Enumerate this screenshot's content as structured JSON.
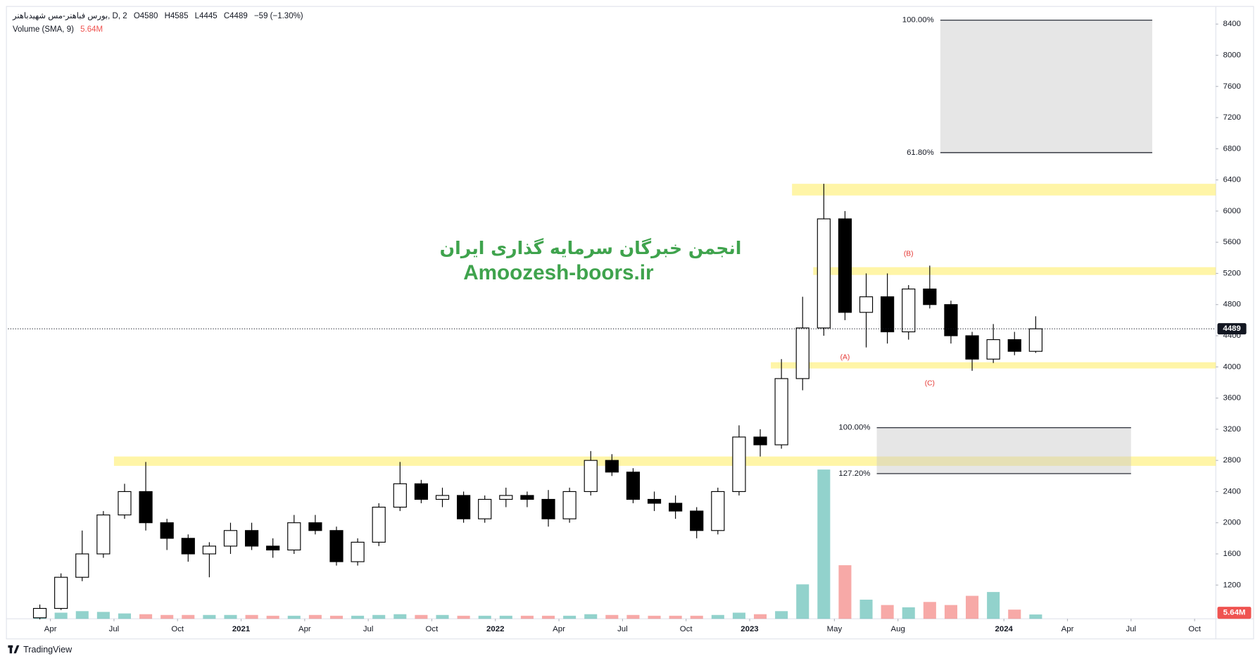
{
  "chart_data": {
    "type": "candlestick",
    "symbol": "بورس فباهنر-مس شهیدباهنر, D, 2",
    "ohlc_legend": [
      "O4580",
      "H4585",
      "L4445",
      "C4489",
      "−59 (−1.30%)"
    ],
    "xlim": [
      "2020-02",
      "2024-11"
    ],
    "ylim": [
      767,
      8606
    ],
    "yticks": [
      1200,
      1600,
      2000,
      2400,
      2800,
      3200,
      3600,
      4000,
      4400,
      4800,
      5200,
      5600,
      6000,
      6400,
      6800,
      7200,
      7600,
      8000,
      8400
    ],
    "xticks": [
      {
        "value": "2020-04",
        "label": "Apr"
      },
      {
        "value": "2020-07",
        "label": "Jul"
      },
      {
        "value": "2020-10",
        "label": "Oct"
      },
      {
        "value": "2021-01",
        "label": "2021"
      },
      {
        "value": "2021-04",
        "label": "Apr"
      },
      {
        "value": "2021-07",
        "label": "Jul"
      },
      {
        "value": "2021-10",
        "label": "Oct"
      },
      {
        "value": "2022-01",
        "label": "2022"
      },
      {
        "value": "2022-04",
        "label": "Apr"
      },
      {
        "value": "2022-07",
        "label": "Jul"
      },
      {
        "value": "2022-10",
        "label": "Oct"
      },
      {
        "value": "2023-01",
        "label": "2023"
      },
      {
        "value": "2023-05",
        "label": "May"
      },
      {
        "value": "2023-08",
        "label": "Aug"
      },
      {
        "value": "2024-01",
        "label": "2024"
      },
      {
        "value": "2024-04",
        "label": "Apr"
      },
      {
        "value": "2024-07",
        "label": "Jul"
      },
      {
        "value": "2024-10",
        "label": "Oct"
      }
    ],
    "up_color": "#ffffff",
    "down_color": "#000000",
    "wick_color": "#000000",
    "candles": {
      "x": [
        "2020-03",
        "2020-04",
        "2020-05",
        "2020-06",
        "2020-07",
        "2020-08",
        "2020-09",
        "2020-10",
        "2020-11",
        "2020-12",
        "2021-01",
        "2021-02",
        "2021-03",
        "2021-04",
        "2021-05",
        "2021-06",
        "2021-07",
        "2021-08",
        "2021-09",
        "2021-10",
        "2021-11",
        "2021-12",
        "2022-01",
        "2022-02",
        "2022-03",
        "2022-04",
        "2022-05",
        "2022-06",
        "2022-07",
        "2022-08",
        "2022-09",
        "2022-10",
        "2022-11",
        "2022-12",
        "2023-01",
        "2023-02",
        "2023-03",
        "2023-04",
        "2023-05",
        "2023-06",
        "2023-07",
        "2023-08",
        "2023-09",
        "2023-10",
        "2023-11",
        "2023-12",
        "2024-01",
        "2024-02"
      ],
      "open": [
        780,
        900,
        1300,
        1600,
        2100,
        2400,
        2000,
        1800,
        1600,
        1700,
        1900,
        1700,
        1650,
        2000,
        1900,
        1500,
        1750,
        2200,
        2500,
        2300,
        2350,
        2050,
        2300,
        2350,
        2300,
        2050,
        2400,
        2800,
        2650,
        2300,
        2250,
        2150,
        1900,
        2400,
        3100,
        3000,
        3850,
        4500,
        5900,
        4700,
        4900,
        4450,
        5000,
        4800,
        4400,
        4100,
        4350,
        4200
      ],
      "high": [
        950,
        1350,
        1900,
        2150,
        2500,
        2780,
        2050,
        1850,
        1750,
        2000,
        2000,
        1800,
        2100,
        2100,
        1950,
        1800,
        2250,
        2780,
        2550,
        2450,
        2400,
        2350,
        2450,
        2400,
        2420,
        2450,
        2920,
        2880,
        2700,
        2400,
        2350,
        2200,
        2450,
        3250,
        3200,
        4100,
        4900,
        6350,
        6000,
        5200,
        5200,
        5050,
        5300,
        4850,
        4450,
        4550,
        4450,
        4650
      ],
      "low": [
        760,
        880,
        1250,
        1550,
        2050,
        1900,
        1650,
        1500,
        1300,
        1600,
        1650,
        1550,
        1600,
        1850,
        1450,
        1450,
        1700,
        2150,
        2250,
        2200,
        2000,
        2000,
        2200,
        2200,
        1950,
        2000,
        2350,
        2600,
        2250,
        2150,
        2050,
        1800,
        1850,
        2350,
        2850,
        2950,
        3700,
        4400,
        4600,
        4250,
        4300,
        4350,
        4750,
        4300,
        3950,
        4050,
        4150,
        4180
      ],
      "close": [
        900,
        1300,
        1600,
        2100,
        2400,
        2000,
        1800,
        1600,
        1700,
        1900,
        1700,
        1650,
        2000,
        1900,
        1500,
        1750,
        2200,
        2500,
        2300,
        2350,
        2050,
        2300,
        2350,
        2300,
        2050,
        2400,
        2800,
        2650,
        2300,
        2250,
        2150,
        1900,
        2400,
        3100,
        3000,
        3850,
        4500,
        5900,
        4700,
        4900,
        4450,
        5000,
        4800,
        4400,
        4100,
        4350,
        4200,
        4489
      ]
    },
    "volume": {
      "label": "Volume (SMA, 9)",
      "ylim": [
        0,
        210
      ],
      "up_color": "rgba(38,166,154,0.5)",
      "down_color": "rgba(239,83,80,0.5)",
      "values": [
        6,
        8,
        10,
        9,
        7,
        6,
        5,
        5,
        5,
        5,
        5,
        4,
        4,
        5,
        4,
        4,
        5,
        6,
        5,
        5,
        4,
        4,
        4,
        4,
        4,
        4,
        6,
        5,
        5,
        4,
        4,
        4,
        5,
        8,
        6,
        10,
        45,
        195,
        70,
        25,
        18,
        15,
        22,
        18,
        30,
        35,
        12,
        5.64
      ],
      "last_value_label": "5.64M"
    },
    "zones": {
      "color": "rgba(255,236,80,0.5)",
      "items": [
        {
          "from": "2020-07",
          "low": 2730,
          "high": 2850
        },
        {
          "from": "2023-02",
          "low": 3980,
          "high": 4060
        },
        {
          "from": "2023-04",
          "low": 5180,
          "high": 5280
        },
        {
          "from": "2023-03",
          "low": 6200,
          "high": 6350
        }
      ]
    },
    "fib_boxes": [
      {
        "from": "2023-10",
        "to": "2024-08",
        "levels": [
          {
            "label": "100.00%",
            "price": 8450
          },
          {
            "label": "61.80%",
            "price": 6750
          }
        ]
      },
      {
        "from": "2023-07",
        "to": "2024-07",
        "levels": [
          {
            "label": "100.00%",
            "price": 3220
          },
          {
            "label": "127.20%",
            "price": 2630
          }
        ]
      }
    ],
    "wave_labels": [
      {
        "label": "(A)",
        "x": "2023-05",
        "price": 4120
      },
      {
        "label": "(B)",
        "x": "2023-08",
        "price": 5450
      },
      {
        "label": "(C)",
        "x": "2023-09",
        "price": 3790
      }
    ],
    "watermark": [
      "انجمن خبرگان سرمایه گذاری ایران",
      "Amoozesh-boors.ir"
    ],
    "branding": "TradingView"
  }
}
